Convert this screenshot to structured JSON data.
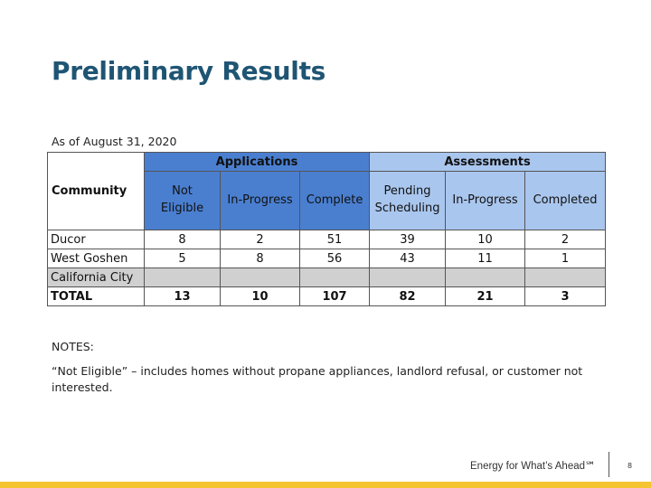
{
  "title": "Preliminary Results",
  "as_of": "As of August 31, 2020",
  "table": {
    "community_header": "Community",
    "group_applications": "Applications",
    "group_assessments": "Assessments",
    "app_cols": [
      [
        "Not",
        "Eligible"
      ],
      [
        "In-Progress"
      ],
      [
        "Complete"
      ]
    ],
    "ass_cols": [
      [
        "Pending",
        "Scheduling"
      ],
      [
        "In-Progress"
      ],
      [
        "Completed"
      ]
    ],
    "rows": [
      {
        "name": "Ducor",
        "values": [
          "8",
          "2",
          "51",
          "39",
          "10",
          "2"
        ]
      },
      {
        "name": "West Goshen",
        "values": [
          "5",
          "8",
          "56",
          "43",
          "11",
          "1"
        ]
      },
      {
        "name": "California City",
        "values": [
          "",
          "",
          "",
          "",
          "",
          ""
        ]
      }
    ],
    "total": {
      "name": "TOTAL",
      "values": [
        "13",
        "10",
        "107",
        "82",
        "21",
        "3"
      ]
    },
    "colors": {
      "applications": "#4a7fd0",
      "assessments": "#a9c6ee",
      "gray_row": "#d0d0d0"
    }
  },
  "notes_label": "NOTES:",
  "note_text": "“Not Eligible” – includes homes without propane appliances, landlord refusal, or customer not interested.",
  "footer": {
    "tagline": "Energy for What’s Ahead℠",
    "page_number": "8",
    "accent_color": "#f4c531"
  }
}
